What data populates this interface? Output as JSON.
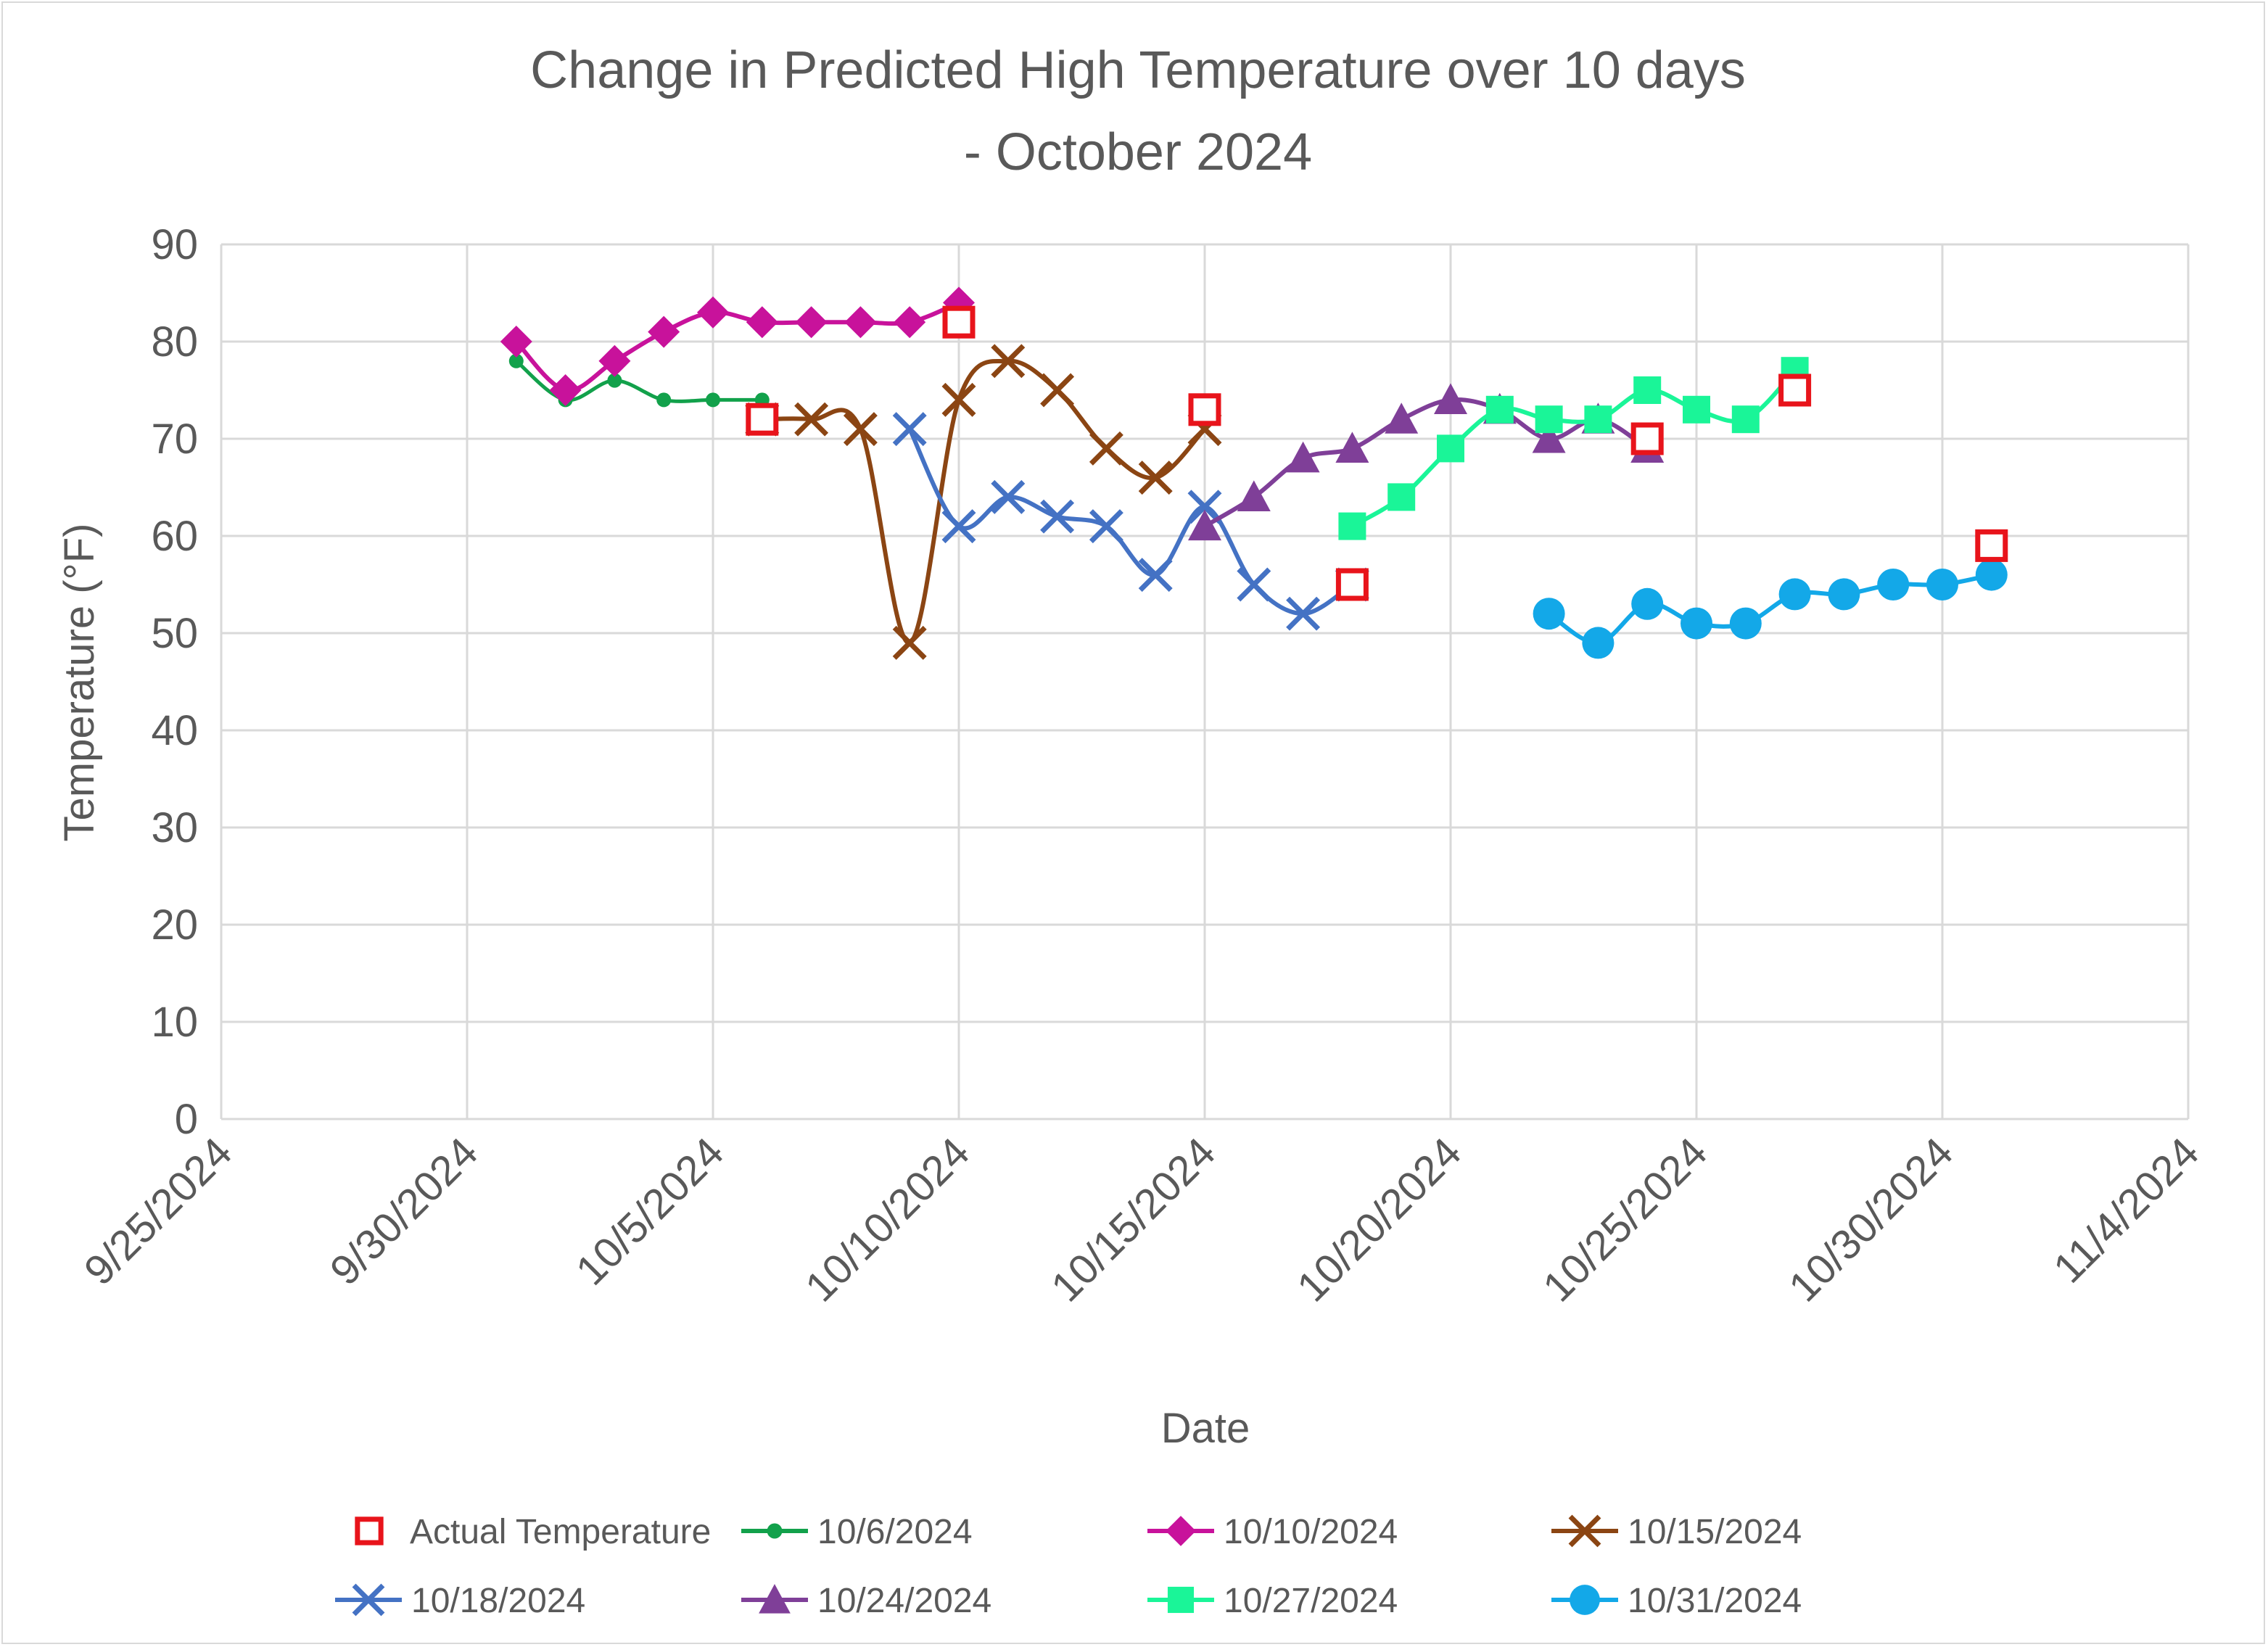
{
  "chart_data": {
    "type": "line",
    "title": [
      "Change in Predicted High Temperature over 10 days",
      "- October 2024"
    ],
    "xlabel": "Date",
    "ylabel": "Temperature (°F)",
    "ylim": [
      0,
      90
    ],
    "yticks": [
      "0",
      "10",
      "20",
      "30",
      "40",
      "50",
      "60",
      "70",
      "80",
      "90"
    ],
    "xlim": [
      "2024-09-25",
      "2024-11-04"
    ],
    "xticks": [
      {
        "date": "2024-09-25",
        "label": "9/25/2024"
      },
      {
        "date": "2024-09-30",
        "label": "9/30/2024"
      },
      {
        "date": "2024-10-05",
        "label": "10/5/2024"
      },
      {
        "date": "2024-10-10",
        "label": "10/10/2024"
      },
      {
        "date": "2024-10-15",
        "label": "10/15/2024"
      },
      {
        "date": "2024-10-20",
        "label": "10/20/2024"
      },
      {
        "date": "2024-10-25",
        "label": "10/25/2024"
      },
      {
        "date": "2024-10-30",
        "label": "10/30/2024"
      },
      {
        "date": "2024-11-04",
        "label": "11/4/2024"
      }
    ],
    "grid": true,
    "legend_position": "bottom",
    "series": [
      {
        "name": "Actual Temperature",
        "color": "#e8141b",
        "marker": "square-open",
        "line": false,
        "points": [
          [
            "2024-10-06",
            72
          ],
          [
            "2024-10-10",
            82
          ],
          [
            "2024-10-15",
            73
          ],
          [
            "2024-10-18",
            55
          ],
          [
            "2024-10-24",
            70
          ],
          [
            "2024-10-27",
            75
          ],
          [
            "2024-10-31",
            59
          ]
        ]
      },
      {
        "name": "10/6/2024",
        "color": "#12a14b",
        "marker": "circle-small",
        "line": true,
        "points": [
          [
            "2024-10-01",
            78
          ],
          [
            "2024-10-02",
            74
          ],
          [
            "2024-10-03",
            76
          ],
          [
            "2024-10-04",
            74
          ],
          [
            "2024-10-05",
            74
          ],
          [
            "2024-10-06",
            74
          ]
        ]
      },
      {
        "name": "10/10/2024",
        "color": "#c8129b",
        "marker": "diamond",
        "line": true,
        "points": [
          [
            "2024-10-01",
            80
          ],
          [
            "2024-10-02",
            75
          ],
          [
            "2024-10-03",
            78
          ],
          [
            "2024-10-04",
            81
          ],
          [
            "2024-10-05",
            83
          ],
          [
            "2024-10-06",
            82
          ],
          [
            "2024-10-07",
            82
          ],
          [
            "2024-10-08",
            82
          ],
          [
            "2024-10-09",
            82
          ],
          [
            "2024-10-10",
            84
          ]
        ]
      },
      {
        "name": "10/15/2024",
        "color": "#8b4513",
        "marker": "x",
        "line": true,
        "points": [
          [
            "2024-10-06",
            72
          ],
          [
            "2024-10-07",
            72
          ],
          [
            "2024-10-08",
            71
          ],
          [
            "2024-10-09",
            49
          ],
          [
            "2024-10-10",
            74
          ],
          [
            "2024-10-11",
            78
          ],
          [
            "2024-10-12",
            75
          ],
          [
            "2024-10-13",
            69
          ],
          [
            "2024-10-14",
            66
          ],
          [
            "2024-10-15",
            71
          ]
        ]
      },
      {
        "name": "10/18/2024",
        "color": "#4472c4",
        "marker": "x",
        "line": true,
        "points": [
          [
            "2024-10-09",
            71
          ],
          [
            "2024-10-10",
            61
          ],
          [
            "2024-10-11",
            64
          ],
          [
            "2024-10-12",
            62
          ],
          [
            "2024-10-13",
            61
          ],
          [
            "2024-10-14",
            56
          ],
          [
            "2024-10-15",
            63
          ],
          [
            "2024-10-16",
            55
          ],
          [
            "2024-10-17",
            52
          ],
          [
            "2024-10-18",
            55
          ]
        ]
      },
      {
        "name": "10/24/2024",
        "color": "#7f3f98",
        "marker": "triangle",
        "line": true,
        "points": [
          [
            "2024-10-15",
            61
          ],
          [
            "2024-10-16",
            64
          ],
          [
            "2024-10-17",
            68
          ],
          [
            "2024-10-18",
            69
          ],
          [
            "2024-10-19",
            72
          ],
          [
            "2024-10-20",
            74
          ],
          [
            "2024-10-21",
            73
          ],
          [
            "2024-10-22",
            70
          ],
          [
            "2024-10-23",
            72
          ],
          [
            "2024-10-24",
            69
          ]
        ]
      },
      {
        "name": "10/27/2024",
        "color": "#1af598",
        "marker": "square",
        "line": true,
        "points": [
          [
            "2024-10-18",
            61
          ],
          [
            "2024-10-19",
            64
          ],
          [
            "2024-10-20",
            69
          ],
          [
            "2024-10-21",
            73
          ],
          [
            "2024-10-22",
            72
          ],
          [
            "2024-10-23",
            72
          ],
          [
            "2024-10-24",
            75
          ],
          [
            "2024-10-25",
            73
          ],
          [
            "2024-10-26",
            72
          ],
          [
            "2024-10-27",
            77
          ]
        ]
      },
      {
        "name": "10/31/2024",
        "color": "#13a8e8",
        "marker": "circle",
        "line": true,
        "points": [
          [
            "2024-10-22",
            52
          ],
          [
            "2024-10-23",
            49
          ],
          [
            "2024-10-24",
            53
          ],
          [
            "2024-10-25",
            51
          ],
          [
            "2024-10-26",
            51
          ],
          [
            "2024-10-27",
            54
          ],
          [
            "2024-10-28",
            54
          ],
          [
            "2024-10-29",
            55
          ],
          [
            "2024-10-30",
            55
          ],
          [
            "2024-10-31",
            56
          ]
        ]
      }
    ]
  }
}
